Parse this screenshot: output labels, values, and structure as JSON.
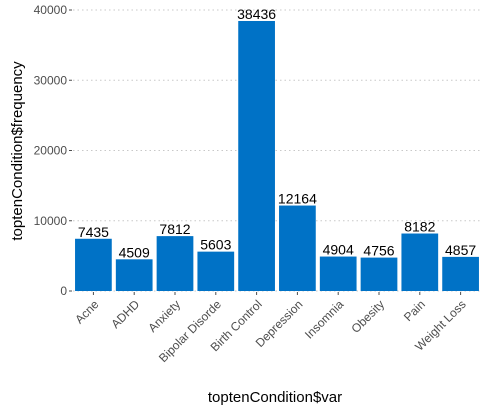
{
  "chart_data": {
    "type": "bar",
    "categories": [
      "Acne",
      "ADHD",
      "Anxiety",
      "Bipolar Disorde",
      "Birth Control",
      "Depression",
      "Insomnia",
      "Obesity",
      "Pain",
      "Weight Loss"
    ],
    "values": [
      7435,
      4509,
      7812,
      5603,
      38436,
      12164,
      4904,
      4756,
      8182,
      4857
    ],
    "data_labels": [
      "7435",
      "4509",
      "7812",
      "5603",
      "38436",
      "12164",
      "4904",
      "4756",
      "8182",
      "4857"
    ],
    "title": "",
    "xlabel": "toptenCondition$var",
    "ylabel": "toptenCondition$frequency",
    "ylim": [
      0,
      40000
    ],
    "yticks": [
      0,
      10000,
      20000,
      30000,
      40000
    ],
    "ytick_labels": [
      "0",
      "10000",
      "20000",
      "30000",
      "40000"
    ],
    "grid": "horizontal-dotted",
    "legend": "none",
    "bar_color": "#0072C6"
  }
}
